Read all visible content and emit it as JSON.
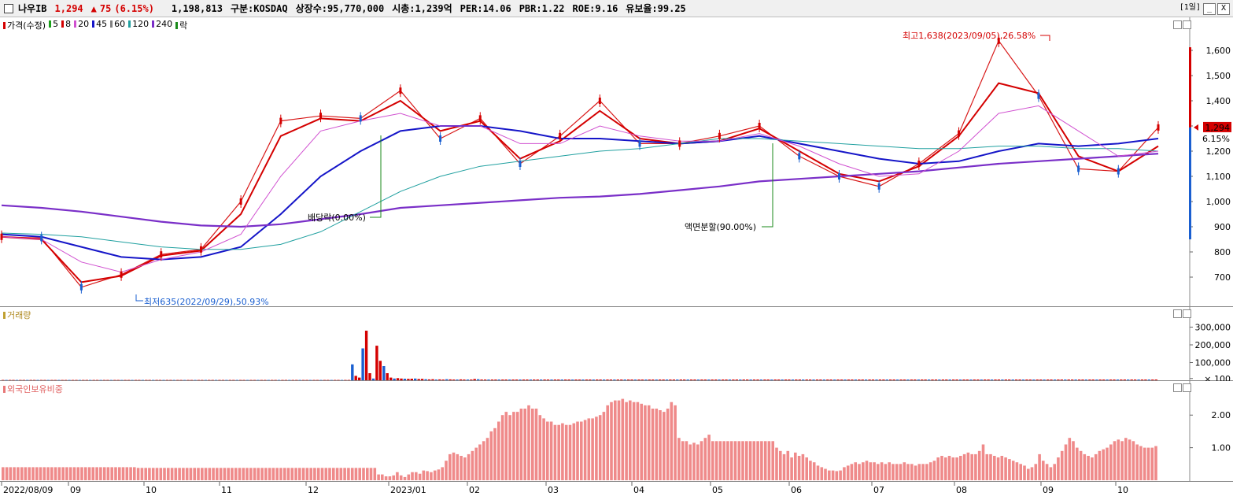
{
  "header": {
    "name": "나우IB",
    "price": "1,294",
    "change_arrow": "▲",
    "change": "75",
    "change_pct": "(6.15%)",
    "volume": "1,198,813",
    "market": "구분:KOSDAQ",
    "shares": "상장수:95,770,000",
    "mktcap": "시총:1,239억",
    "per": "PER:14.06",
    "pbr": "PBR:1.22",
    "roe": "ROE:9.16",
    "float": "유보율:99.25",
    "period_button": "[1일]",
    "min_button": "_",
    "close_button": "X"
  },
  "legend": {
    "price": {
      "label": "가격(수정)",
      "color": "#d40000"
    },
    "ma": [
      {
        "label": "5",
        "color": "#1aa01a"
      },
      {
        "label": "8",
        "color": "#d40000"
      },
      {
        "label": "20",
        "color": "#d050d0"
      },
      {
        "label": "45",
        "color": "#1515c8"
      },
      {
        "label": "60",
        "color": "#808080"
      },
      {
        "label": "120",
        "color": "#20a0a0"
      },
      {
        "label": "240",
        "color": "#7a2fc8"
      },
      {
        "label": "락",
        "color": "#1a8a1a"
      }
    ],
    "volume": {
      "label": "거래량",
      "color": "#c0a030"
    },
    "foreign": {
      "label": "외국인보유비중",
      "color": "#e87878"
    }
  },
  "current_price_tag": {
    "value": "1,294",
    "pct": "6.15%"
  },
  "annotations": {
    "high": "최고1,638(2023/09/05),26.58%",
    "low": "최저635(2022/09/29),50.93%",
    "dividend": "배당락(0.00%)",
    "split": "액면분할(90.00%)"
  },
  "x_ticks": [
    "2022/08/09",
    "09",
    "10",
    "11",
    "12",
    "2023/01",
    "02",
    "03",
    "04",
    "05",
    "06",
    "07",
    "08",
    "09",
    "10"
  ],
  "chart_data": [
    {
      "type": "line",
      "panel": "price",
      "ylim": [
        600,
        1700
      ],
      "y_ticks": [
        "1,600",
        "1,500",
        "1,400",
        "1,300",
        "1,200",
        "1,100",
        "1,000",
        "900",
        "800",
        "700"
      ],
      "y_tick_values": [
        1600,
        1500,
        1400,
        1300,
        1200,
        1100,
        1000,
        900,
        800,
        700
      ],
      "x": [
        "2022/08/09",
        "2022/09",
        "2022/09/29",
        "2022/10",
        "2022/11",
        "2022/12",
        "2022/12 mid",
        "2022/12 late",
        "2023/01",
        "2023/01 mid",
        "2023/02",
        "2023/02 mid",
        "2023/03",
        "2023/03 mid",
        "2023/04",
        "2023/04 mid",
        "2023/05",
        "2023/05 mid",
        "2023/06",
        "2023/06 mid",
        "2023/07",
        "2023/07 mid",
        "2023/08",
        "2023/08 mid",
        "2023/09",
        "2023/09/05",
        "2023/09 mid",
        "2023/10",
        "2023/10 mid",
        "2023/10 end"
      ],
      "series": [
        {
          "name": "가격(수정)",
          "color": "#d40000",
          "values": [
            860,
            855,
            660,
            710,
            790,
            810,
            1000,
            1320,
            1340,
            1330,
            1440,
            1250,
            1330,
            1150,
            1260,
            1400,
            1230,
            1230,
            1260,
            1300,
            1180,
            1100,
            1060,
            1150,
            1270,
            1638,
            1420,
            1130,
            1120,
            1294
          ]
        },
        {
          "name": "8",
          "color": "#d40000",
          "values": [
            860,
            850,
            680,
            705,
            785,
            805,
            950,
            1260,
            1330,
            1320,
            1400,
            1280,
            1320,
            1170,
            1240,
            1360,
            1250,
            1230,
            1240,
            1290,
            1200,
            1110,
            1080,
            1140,
            1260,
            1470,
            1430,
            1180,
            1120,
            1220
          ]
        },
        {
          "name": "45",
          "color": "#1515c8",
          "values": [
            870,
            860,
            820,
            780,
            770,
            780,
            820,
            950,
            1100,
            1200,
            1280,
            1300,
            1300,
            1280,
            1250,
            1250,
            1240,
            1230,
            1240,
            1260,
            1230,
            1200,
            1170,
            1150,
            1160,
            1200,
            1230,
            1220,
            1230,
            1250
          ]
        },
        {
          "name": "240",
          "color": "#7a2fc8",
          "values": [
            985,
            975,
            960,
            940,
            920,
            905,
            900,
            910,
            930,
            950,
            975,
            985,
            995,
            1005,
            1015,
            1020,
            1030,
            1045,
            1060,
            1080,
            1090,
            1100,
            1110,
            1120,
            1135,
            1150,
            1160,
            1170,
            1180,
            1190
          ]
        },
        {
          "name": "120",
          "color": "#20a0a0",
          "values": [
            875,
            870,
            860,
            840,
            820,
            810,
            810,
            830,
            880,
            960,
            1040,
            1100,
            1140,
            1160,
            1180,
            1200,
            1210,
            1230,
            1250,
            1250,
            1240,
            1230,
            1220,
            1210,
            1210,
            1220,
            1220,
            1210,
            1210,
            1200
          ]
        },
        {
          "name": "20",
          "color": "#d050d0",
          "values": [
            860,
            850,
            760,
            720,
            770,
            800,
            870,
            1100,
            1280,
            1320,
            1350,
            1300,
            1300,
            1230,
            1230,
            1300,
            1260,
            1240,
            1240,
            1270,
            1220,
            1150,
            1100,
            1110,
            1200,
            1350,
            1380,
            1280,
            1180,
            1200
          ]
        }
      ]
    },
    {
      "type": "bar",
      "panel": "volume",
      "ylim": [
        0,
        360000
      ],
      "y_ticks": [
        "300,000",
        "200,000",
        "100,000",
        "× 100"
      ],
      "y_tick_values": [
        300000,
        200000,
        100000,
        10000
      ],
      "values": [
        1800,
        1800,
        1800,
        1800,
        1800,
        1800,
        1800,
        1800,
        1800,
        1800,
        1800,
        1800,
        1800,
        1800,
        1800,
        1800,
        1800,
        1800,
        1800,
        1800,
        1800,
        1800,
        1800,
        1800,
        1800,
        1800,
        1800,
        1800,
        1800,
        1800,
        1800,
        1800,
        1800,
        1800,
        1800,
        1800,
        1800,
        1800,
        1800,
        1800,
        1800,
        1800,
        1800,
        1800,
        1800,
        1800,
        1800,
        1800,
        1800,
        1800,
        1800,
        1800,
        1800,
        1800,
        1800,
        1800,
        1800,
        1800,
        1800,
        1800,
        1800,
        1800,
        1800,
        1800,
        1800,
        1800,
        1800,
        1800,
        1800,
        1800,
        1800,
        1800,
        1800,
        1800,
        1800,
        1800,
        1800,
        1800,
        1800,
        1800,
        1800,
        1800,
        1800,
        1800,
        1800,
        1800,
        1800,
        1800,
        1800,
        1800,
        1800,
        1800,
        1800,
        1800,
        1800,
        1800,
        1800,
        1800,
        1800,
        1800,
        90000,
        25000,
        15000,
        180000,
        280000,
        40000,
        10000,
        195000,
        110000,
        80000,
        40000,
        15000,
        10000,
        12000,
        10000,
        9000,
        8000,
        9000,
        10000,
        7000,
        8000,
        6000,
        5000,
        6000,
        4000,
        5000,
        4000,
        6000,
        5000,
        4000,
        4000,
        5000,
        4000,
        4000,
        4000,
        7000,
        6000,
        4000,
        4000,
        4000,
        4000,
        4000,
        4000,
        4000,
        4000,
        4000,
        4000,
        4000,
        4000,
        4000,
        4000,
        4000,
        4000,
        4000,
        4000,
        4000,
        4000,
        4000,
        4000,
        4000,
        4000,
        4000,
        4000,
        4000,
        4000,
        4000,
        4000,
        4000,
        4000,
        4000,
        4000,
        4000,
        4000,
        4000,
        4000,
        4000,
        4000,
        4000,
        4000,
        4000,
        4000,
        4000,
        4000,
        4000,
        4000,
        4000,
        4000,
        4000,
        4000,
        4000,
        4000,
        4000,
        4000,
        4000,
        4000,
        4000,
        4000,
        4000,
        4000,
        4000,
        4000,
        4000,
        4000,
        4000,
        4000,
        4000,
        4000,
        4000,
        4000,
        4000,
        4000,
        4000,
        4000,
        4000,
        4000,
        4000,
        4000,
        4000,
        4000,
        4000,
        4000,
        4000,
        4000,
        4000,
        4000,
        4000,
        4000,
        4000,
        4000,
        4000,
        4000,
        4000,
        4000,
        4000,
        4000,
        4000,
        4000,
        4000,
        4000,
        4000,
        4000,
        4000,
        4000,
        4000,
        4000,
        4000,
        4000,
        4000,
        4000,
        4000,
        4000,
        4000,
        4000,
        4000,
        4000,
        4000,
        4000,
        4000,
        4000,
        4000,
        4000,
        4000,
        4000,
        4000,
        4000,
        4000,
        4000,
        4000,
        4000,
        4000,
        4000,
        4000,
        4000,
        4000,
        4000,
        4000,
        4000,
        4000,
        4000,
        4000,
        4000,
        4000,
        4000,
        4000,
        4000,
        4000,
        4000,
        4000,
        4000,
        4000,
        4000,
        4000,
        4000,
        4000,
        4000,
        4000,
        4000,
        4000,
        4000,
        4000,
        4000,
        4000,
        4000,
        4000,
        4000,
        4000,
        4000,
        4000,
        4000,
        4000,
        4000,
        4000,
        4000,
        4000,
        4000,
        4000,
        4000,
        4000,
        4000,
        4000,
        4000,
        4000,
        4000,
        4000,
        4000,
        4000,
        4000,
        4000,
        4000,
        4000,
        4000
      ]
    },
    {
      "type": "bar",
      "panel": "foreign",
      "ylim": [
        0,
        2.9
      ],
      "y_ticks": [
        "2.00",
        "1.00"
      ],
      "y_tick_values": [
        2.0,
        1.0
      ],
      "values": [
        0.4,
        0.4,
        0.4,
        0.4,
        0.4,
        0.4,
        0.4,
        0.4,
        0.4,
        0.4,
        0.4,
        0.4,
        0.4,
        0.4,
        0.4,
        0.4,
        0.4,
        0.4,
        0.4,
        0.4,
        0.4,
        0.4,
        0.4,
        0.4,
        0.4,
        0.4,
        0.4,
        0.4,
        0.4,
        0.4,
        0.4,
        0.4,
        0.4,
        0.4,
        0.4,
        0.4,
        0.38,
        0.38,
        0.38,
        0.38,
        0.38,
        0.38,
        0.38,
        0.38,
        0.38,
        0.38,
        0.38,
        0.38,
        0.38,
        0.38,
        0.38,
        0.38,
        0.38,
        0.38,
        0.38,
        0.38,
        0.38,
        0.38,
        0.38,
        0.38,
        0.38,
        0.38,
        0.38,
        0.38,
        0.38,
        0.38,
        0.38,
        0.38,
        0.38,
        0.38,
        0.38,
        0.38,
        0.38,
        0.38,
        0.38,
        0.38,
        0.38,
        0.38,
        0.38,
        0.38,
        0.38,
        0.38,
        0.38,
        0.38,
        0.38,
        0.38,
        0.38,
        0.38,
        0.38,
        0.38,
        0.38,
        0.38,
        0.38,
        0.38,
        0.38,
        0.38,
        0.38,
        0.38,
        0.38,
        0.38,
        0.18,
        0.18,
        0.12,
        0.12,
        0.15,
        0.25,
        0.15,
        0.1,
        0.18,
        0.25,
        0.25,
        0.2,
        0.3,
        0.28,
        0.25,
        0.3,
        0.33,
        0.4,
        0.6,
        0.8,
        0.85,
        0.8,
        0.75,
        0.7,
        0.8,
        0.9,
        1.0,
        1.1,
        1.2,
        1.3,
        1.5,
        1.6,
        1.8,
        2.0,
        2.1,
        2.0,
        2.1,
        2.1,
        2.2,
        2.2,
        2.3,
        2.2,
        2.2,
        2.0,
        1.9,
        1.8,
        1.8,
        1.7,
        1.7,
        1.75,
        1.7,
        1.7,
        1.75,
        1.8,
        1.8,
        1.85,
        1.9,
        1.9,
        1.95,
        2.0,
        2.1,
        2.3,
        2.4,
        2.45,
        2.45,
        2.5,
        2.4,
        2.45,
        2.4,
        2.4,
        2.35,
        2.3,
        2.3,
        2.2,
        2.2,
        2.15,
        2.1,
        2.2,
        2.4,
        2.3,
        1.3,
        1.2,
        1.2,
        1.1,
        1.15,
        1.1,
        1.2,
        1.3,
        1.4,
        1.2,
        1.2,
        1.2,
        1.2,
        1.2,
        1.2,
        1.2,
        1.2,
        1.2,
        1.2,
        1.2,
        1.2,
        1.2,
        1.2,
        1.2,
        1.2,
        1.2,
        1.0,
        0.9,
        0.8,
        0.9,
        0.7,
        0.85,
        0.75,
        0.8,
        0.7,
        0.6,
        0.55,
        0.45,
        0.4,
        0.35,
        0.3,
        0.3,
        0.28,
        0.3,
        0.4,
        0.45,
        0.5,
        0.55,
        0.5,
        0.55,
        0.6,
        0.55,
        0.55,
        0.5,
        0.55,
        0.5,
        0.55,
        0.5,
        0.5,
        0.5,
        0.55,
        0.5,
        0.5,
        0.45,
        0.5,
        0.5,
        0.5,
        0.55,
        0.6,
        0.7,
        0.75,
        0.7,
        0.75,
        0.7,
        0.7,
        0.75,
        0.8,
        0.85,
        0.8,
        0.8,
        0.9,
        1.1,
        0.8,
        0.8,
        0.75,
        0.7,
        0.75,
        0.7,
        0.65,
        0.6,
        0.55,
        0.5,
        0.45,
        0.35,
        0.4,
        0.5,
        0.8,
        0.6,
        0.5,
        0.4,
        0.5,
        0.7,
        0.9,
        1.1,
        1.3,
        1.2,
        1.0,
        0.9,
        0.8,
        0.75,
        0.7,
        0.8,
        0.9,
        0.95,
        1.0,
        1.1,
        1.2,
        1.25,
        1.2,
        1.3,
        1.25,
        1.2,
        1.1,
        1.05,
        1.0,
        1.0,
        1.0,
        1.05
      ]
    }
  ]
}
